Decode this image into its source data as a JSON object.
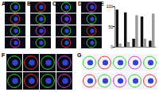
{
  "panels": [
    {
      "label": "A",
      "images": 4
    },
    {
      "label": "B",
      "images": 4
    },
    {
      "label": "C",
      "images": 4
    },
    {
      "label": "D",
      "images": 4
    },
    {
      "label": "F",
      "images": 8
    },
    {
      "label": "G",
      "images": 10
    }
  ],
  "chart_label": "E",
  "chart_data": {
    "type": "bar",
    "categories": [
      null,
      null,
      null,
      null,
      null
    ],
    "series": [
      {
        "color": "#111111",
        "values": [
          92,
          85,
          20,
          75,
          15
        ]
      },
      {
        "color": "#9a9a9a",
        "values": [
          8,
          12,
          78,
          20,
          82
        ]
      }
    ],
    "ylim": [
      0,
      100
    ],
    "yticks": [
      0,
      50,
      100
    ],
    "grid": false,
    "tick_labels": "y"
  }
}
